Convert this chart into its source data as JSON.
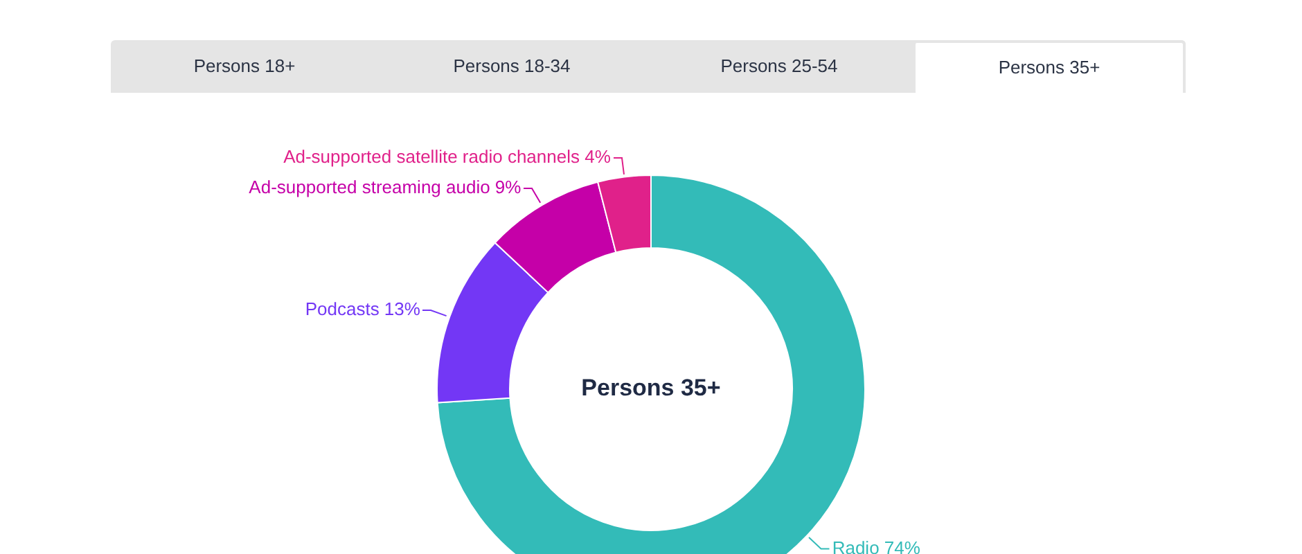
{
  "chart_data": {
    "type": "donut",
    "title": "Persons 35+",
    "annotations": [
      "Persons 18+",
      "Persons 18-34",
      "Persons 25-54",
      "Persons 35+"
    ],
    "categories": [
      "Radio",
      "Podcasts",
      "Ad-supported streaming audio",
      "Ad-supported satellite radio channels"
    ],
    "values": [
      74,
      13,
      9,
      4
    ],
    "value_labels": [
      "74%",
      "13%",
      "9%",
      "4%"
    ],
    "colors": [
      "#33bbb8",
      "#7337f5",
      "#c500a8",
      "#e0218a"
    ],
    "legend": false
  }
}
